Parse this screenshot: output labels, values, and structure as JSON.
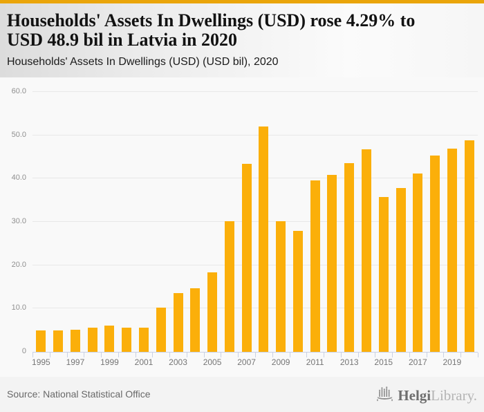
{
  "page": {
    "accent_color": "#eaa50a",
    "bar_color": "#fbaf0a",
    "axis_color": "#c9d1e5",
    "gridline_color": "#e8e8e8"
  },
  "header": {
    "title": "Households' Assets In Dwellings (USD) rose 4.29% to USD 48.9 bil in Latvia in 2020",
    "title_lines": [
      "Households' Assets In Dwellings (USD) rose 4.29% to",
      "USD 48.9 bil in Latvia in 2020"
    ],
    "subtitle": "Households' Assets In Dwellings (USD) (USD bil), 2020"
  },
  "chart_data": {
    "type": "bar",
    "title": "Households' Assets In Dwellings (USD) rose 4.29% to USD 48.9 bil in Latvia in 2020",
    "subtitle": "Households' Assets In Dwellings (USD) (USD bil), 2020",
    "xlabel": "",
    "ylabel": "",
    "categories": [
      1995,
      1996,
      1997,
      1998,
      1999,
      2000,
      2001,
      2002,
      2003,
      2004,
      2005,
      2006,
      2007,
      2008,
      2009,
      2010,
      2011,
      2012,
      2013,
      2014,
      2015,
      2016,
      2017,
      2018,
      2019,
      2020
    ],
    "values": [
      5.0,
      5.0,
      5.1,
      5.6,
      6.0,
      5.6,
      5.6,
      10.2,
      13.6,
      14.7,
      18.4,
      30.1,
      43.4,
      52.1,
      30.1,
      27.9,
      39.6,
      40.8,
      43.5,
      46.7,
      35.7,
      37.8,
      41.1,
      45.3,
      46.9,
      48.9
    ],
    "bar_color": "#fbaf0a",
    "ylim": [
      0,
      60
    ],
    "grid": true,
    "legend": false,
    "yticks": [
      {
        "value": 60,
        "label": "60.0"
      },
      {
        "value": 50,
        "label": "50.0"
      },
      {
        "value": 40,
        "label": "40.0"
      },
      {
        "value": 30,
        "label": "30.0"
      },
      {
        "value": 20,
        "label": "20.0"
      },
      {
        "value": 10,
        "label": "10.0"
      },
      {
        "value": 0,
        "label": "0"
      }
    ],
    "xtick_labels": [
      "1995",
      "1997",
      "1999",
      "2001",
      "2003",
      "2005",
      "2007",
      "2009",
      "2011",
      "2013",
      "2015",
      "2017",
      "2019"
    ]
  },
  "footer": {
    "source": "Source: National Statistical Office",
    "logo": {
      "name": "Helgi Library",
      "part1": "Helgi",
      "part2": "Library."
    }
  }
}
